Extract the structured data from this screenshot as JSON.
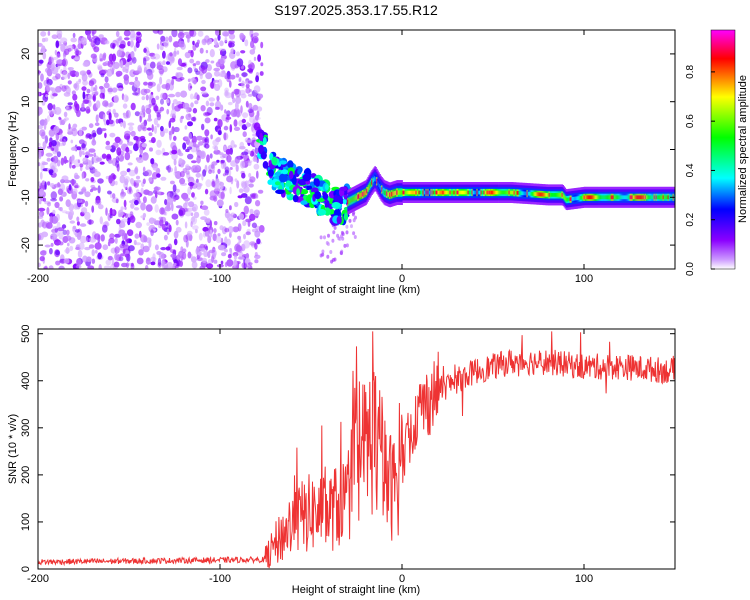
{
  "title": "S197.2025.353.17.55.R12",
  "chart_data": [
    {
      "type": "heatmap",
      "name": "spectrogram",
      "xlabel": "Height of straight line (km)",
      "ylabel": "Frequency (Hz)",
      "xlim": [
        -200,
        150
      ],
      "ylim": [
        -25,
        25
      ],
      "xticks": [
        -200,
        -100,
        0,
        100
      ],
      "yticks": [
        -20,
        -10,
        0,
        10,
        20
      ],
      "noise_region_x": [
        -200,
        -77
      ],
      "signal_ridge": {
        "x": [
          -77,
          -72,
          -65,
          -58,
          -52,
          -46,
          -40,
          -35,
          -30,
          -25,
          -20,
          -17,
          -15,
          -12,
          -10,
          -7,
          -3,
          0,
          20,
          40,
          60,
          80,
          88,
          90,
          100,
          120,
          150
        ],
        "freq": [
          1,
          -4,
          -6,
          -7,
          -8,
          -9.5,
          -11,
          -12,
          -11,
          -10,
          -9,
          -7,
          -6,
          -8,
          -9,
          -9.5,
          -9,
          -9,
          -9,
          -9,
          -9,
          -9.5,
          -9.5,
          -10.5,
          -10,
          -10,
          -10
        ]
      },
      "colorbar": {
        "label": "Normalized spectral amplitude",
        "ticks": [
          "0.0",
          "0.2",
          "0.4",
          "0.6",
          "0.8"
        ],
        "range": [
          0,
          0.97
        ],
        "colormap": [
          "#ffffff",
          "#8b00ff",
          "#0000ff",
          "#00ffff",
          "#00ff00",
          "#ffff00",
          "#ff0000",
          "#ff00ff"
        ]
      }
    },
    {
      "type": "line",
      "name": "snr",
      "xlabel": "Height of straight line (km)",
      "ylabel": "SNR (10 * v/v)",
      "xlim": [
        -200,
        150
      ],
      "ylim": [
        0,
        510
      ],
      "xticks": [
        -200,
        -100,
        0,
        100
      ],
      "yticks": [
        0,
        100,
        200,
        300,
        400,
        500
      ],
      "color": "#ee3333",
      "trend": {
        "x": [
          -200,
          -75,
          -68,
          -60,
          -50,
          -40,
          -30,
          -25,
          -20,
          -15,
          -10,
          -5,
          0,
          5,
          10,
          20,
          30,
          40,
          60,
          80,
          100,
          120,
          150
        ],
        "y": [
          15,
          20,
          60,
          100,
          120,
          120,
          150,
          230,
          260,
          290,
          200,
          170,
          220,
          300,
          340,
          380,
          400,
          420,
          440,
          440,
          430,
          430,
          420
        ]
      }
    }
  ]
}
